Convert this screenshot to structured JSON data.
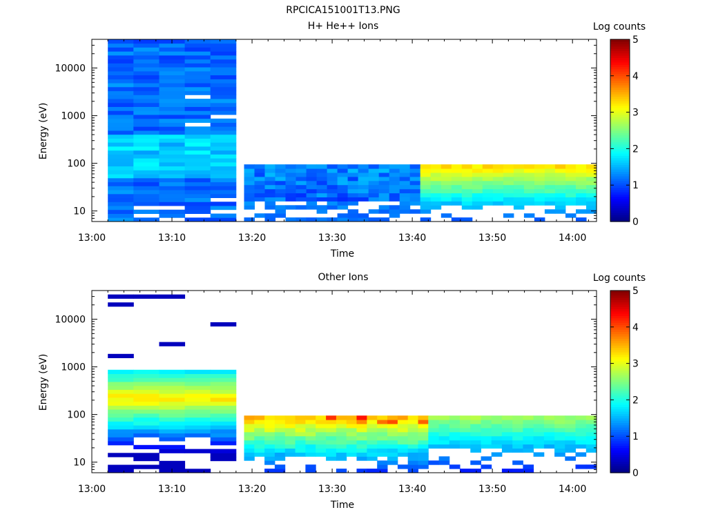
{
  "figure": {
    "title": "RPCICA151001T13.PNG"
  },
  "chart_data": [
    {
      "type": "heatmap",
      "title": "H+ He++ Ions",
      "xlabel": "Time",
      "ylabel": "Energy (eV)",
      "y_scale": "log",
      "xlim": [
        "13:00",
        "14:03"
      ],
      "ylim": [
        6,
        40000
      ],
      "x_ticks": [
        "13:00",
        "13:10",
        "13:20",
        "13:30",
        "13:40",
        "13:50",
        "14:00"
      ],
      "y_ticks": [
        "10",
        "100",
        "1000",
        "10000"
      ],
      "colorbar": {
        "label": "Log counts",
        "range": [
          0,
          5
        ],
        "ticks": [
          "0",
          "1",
          "2",
          "3",
          "4",
          "5"
        ]
      },
      "blocks": [
        {
          "t_start": "13:02",
          "t_end": "13:18",
          "e_min": 6,
          "e_max": 40000,
          "sweep_minutes": 3.2,
          "profile": "hhe-early"
        },
        {
          "t_start": "13:19",
          "t_end": "13:41",
          "e_min": 6,
          "e_max": 95,
          "sweep_minutes": 1.3,
          "profile": "hhe-mid"
        },
        {
          "t_start": "13:41",
          "t_end": "14:03",
          "e_min": 6,
          "e_max": 95,
          "sweep_minutes": 1.3,
          "profile": "hhe-late"
        }
      ]
    },
    {
      "type": "heatmap",
      "title": "Other Ions",
      "xlabel": "Time",
      "ylabel": "Energy (eV)",
      "y_scale": "log",
      "xlim": [
        "13:00",
        "14:03"
      ],
      "ylim": [
        6,
        40000
      ],
      "x_ticks": [
        "13:00",
        "13:10",
        "13:20",
        "13:30",
        "13:40",
        "13:50",
        "14:00"
      ],
      "y_ticks": [
        "10",
        "100",
        "1000",
        "10000"
      ],
      "colorbar": {
        "label": "Log counts",
        "range": [
          0,
          5
        ],
        "ticks": [
          "0",
          "1",
          "2",
          "3",
          "4",
          "5"
        ]
      },
      "blocks": [
        {
          "t_start": "13:02",
          "t_end": "13:18",
          "e_min": 6,
          "e_max": 40000,
          "sweep_minutes": 3.2,
          "profile": "other-early"
        },
        {
          "t_start": "13:19",
          "t_end": "13:42",
          "e_min": 6,
          "e_max": 95,
          "sweep_minutes": 1.3,
          "profile": "other-mid"
        },
        {
          "t_start": "13:42",
          "t_end": "14:03",
          "e_min": 6,
          "e_max": 95,
          "sweep_minutes": 1.3,
          "profile": "other-late"
        }
      ]
    }
  ]
}
